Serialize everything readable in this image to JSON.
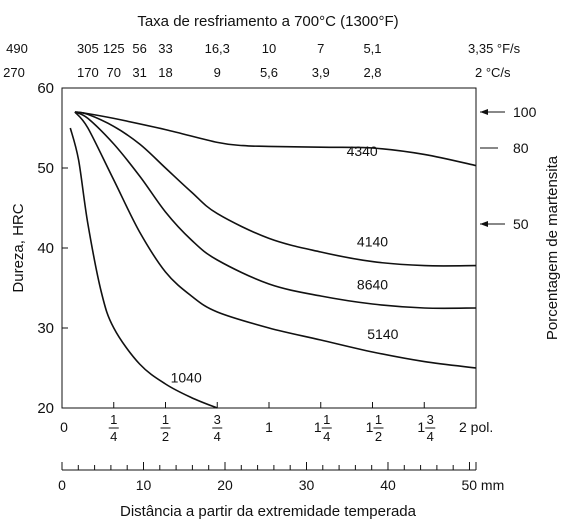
{
  "chart_data": {
    "type": "line",
    "title": "Taxa de resfriamento a 700°C (1300°F)",
    "xlabel": "Distância a partir da extremidade temperada",
    "ylabel": "Dureza, HRC",
    "y2label": "Porcentagem de martensita",
    "xlim_inches": [
      0,
      2
    ],
    "ylim": [
      20,
      60
    ],
    "y_ticks": [
      "20",
      "30",
      "40",
      "50",
      "60"
    ],
    "x_ticks_inches": [
      {
        "pos": 0,
        "label": "0"
      },
      {
        "pos": 0.25,
        "label": "1/4",
        "num": "1",
        "den": "4"
      },
      {
        "pos": 0.5,
        "label": "1/2",
        "num": "1",
        "den": "2"
      },
      {
        "pos": 0.75,
        "label": "3/4",
        "num": "3",
        "den": "4"
      },
      {
        "pos": 1,
        "label": "1"
      },
      {
        "pos": 1.25,
        "label": "1 1/4",
        "whole": "1",
        "num": "1",
        "den": "4"
      },
      {
        "pos": 1.5,
        "label": "1 1/2",
        "whole": "1",
        "num": "1",
        "den": "2"
      },
      {
        "pos": 1.75,
        "label": "1 3/4",
        "whole": "1",
        "num": "3",
        "den": "4"
      },
      {
        "pos": 2,
        "label": "2 pol."
      }
    ],
    "x_ticks_mm": [
      {
        "pos": 0,
        "label": "0"
      },
      {
        "pos": 10,
        "label": "10"
      },
      {
        "pos": 20,
        "label": "20"
      },
      {
        "pos": 30,
        "label": "30"
      },
      {
        "pos": 40,
        "label": "40"
      },
      {
        "pos": 50,
        "label": "50 mm"
      }
    ],
    "cooling_rate_F_per_s": [
      {
        "pos": 0.0,
        "label": "490"
      },
      {
        "pos": 0.125,
        "label": "305"
      },
      {
        "pos": 0.25,
        "label": "125"
      },
      {
        "pos": 0.375,
        "label": "56"
      },
      {
        "pos": 0.5,
        "label": "33"
      },
      {
        "pos": 0.75,
        "label": "16,3"
      },
      {
        "pos": 1.0,
        "label": "10"
      },
      {
        "pos": 1.25,
        "label": "7"
      },
      {
        "pos": 1.5,
        "label": "5,1"
      },
      {
        "pos": 2.0,
        "label": "3,35 °F/s"
      }
    ],
    "cooling_rate_C_per_s": [
      {
        "pos": 0.0,
        "label": "270"
      },
      {
        "pos": 0.125,
        "label": "170"
      },
      {
        "pos": 0.25,
        "label": "70"
      },
      {
        "pos": 0.375,
        "label": "31"
      },
      {
        "pos": 0.5,
        "label": "18"
      },
      {
        "pos": 0.75,
        "label": "9"
      },
      {
        "pos": 1.0,
        "label": "5,6"
      },
      {
        "pos": 1.25,
        "label": "3,9"
      },
      {
        "pos": 1.5,
        "label": "2,8"
      },
      {
        "pos": 2.0,
        "label": "2 °C/s"
      }
    ],
    "martensite_markers": [
      {
        "label": "100",
        "hrc": 57
      },
      {
        "label": "80",
        "hrc": 52.5
      },
      {
        "label": "50",
        "hrc": 43
      }
    ],
    "series": [
      {
        "name": "4340",
        "x": [
          0.0625,
          0.1,
          0.25,
          0.5,
          0.75,
          0.875,
          1.0,
          1.25,
          1.5,
          1.75,
          2.0
        ],
        "y": [
          57,
          56.9,
          56.2,
          54.8,
          53.2,
          52.8,
          52.7,
          52.6,
          52.5,
          51.7,
          50.3
        ]
      },
      {
        "name": "4140",
        "x": [
          0.0625,
          0.125,
          0.25,
          0.375,
          0.5,
          0.625,
          0.75,
          1.0,
          1.25,
          1.5,
          1.75,
          2.0
        ],
        "y": [
          57,
          56.7,
          55.2,
          53.0,
          50.0,
          47.0,
          44.3,
          41.2,
          39.5,
          38.3,
          37.8,
          37.8
        ]
      },
      {
        "name": "8640",
        "x": [
          0.0625,
          0.125,
          0.25,
          0.375,
          0.5,
          0.625,
          0.75,
          1.0,
          1.25,
          1.5,
          1.75,
          2.0
        ],
        "y": [
          57,
          56.2,
          53.0,
          49.0,
          44.5,
          41.0,
          38.5,
          35.5,
          34.0,
          33.0,
          32.5,
          32.5
        ]
      },
      {
        "name": "5140",
        "x": [
          0.0625,
          0.125,
          0.25,
          0.375,
          0.5,
          0.625,
          0.75,
          1.0,
          1.25,
          1.5,
          1.75,
          2.0
        ],
        "y": [
          57,
          55.0,
          48.5,
          42.0,
          37.0,
          34.0,
          32.0,
          30.0,
          28.5,
          27.0,
          25.8,
          25.0
        ]
      },
      {
        "name": "1040",
        "x": [
          0.04,
          0.08,
          0.125,
          0.19,
          0.25,
          0.375,
          0.5,
          0.625,
          0.75
        ],
        "y": [
          55.0,
          51.0,
          43.0,
          34.5,
          30.0,
          25.5,
          23.0,
          21.3,
          20.0
        ]
      }
    ]
  }
}
